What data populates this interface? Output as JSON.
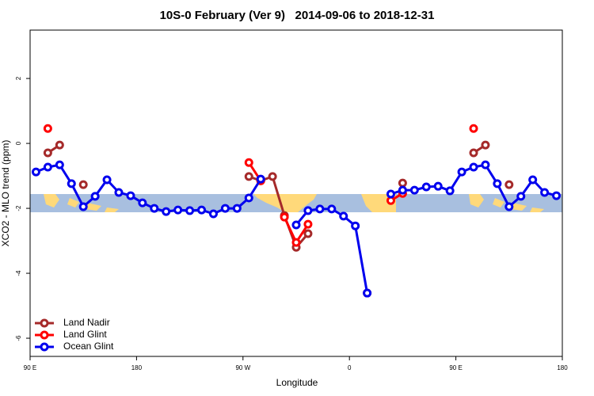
{
  "chart_data": {
    "type": "line",
    "title": "10S-0 February (Ver 9)   2014-09-06 to 2018-12-31",
    "xlabel": "Longitude",
    "ylabel": "XCO2 - MLO trend (ppm)",
    "x": [
      95,
      105,
      115,
      125,
      135,
      145,
      155,
      165,
      175,
      185,
      195,
      205,
      215,
      225,
      235,
      245,
      255,
      265,
      275,
      285,
      295,
      305,
      315,
      325,
      335,
      345,
      355,
      365,
      375,
      385,
      395,
      405,
      415,
      425,
      435,
      445,
      455,
      465,
      475,
      485,
      495,
      505,
      515,
      525,
      535
    ],
    "xlim": [
      90,
      540
    ],
    "xticks": [
      {
        "value": 90,
        "label": "90 E"
      },
      180,
      {
        "value": 270,
        "label": "90 W"
      },
      {
        "value": 360,
        "label": "0"
      },
      {
        "value": 450,
        "label": "90 E"
      },
      {
        "value": 540,
        "label": "180"
      }
    ],
    "ylim": [
      -6.56,
      3.49
    ],
    "yticks": [
      -6,
      -4,
      -2,
      0,
      2
    ],
    "legend": "bottom-left",
    "series": [
      {
        "name": "Land Nadir",
        "color": "#a52a2a",
        "values": [
          null,
          -0.29,
          -0.05,
          null,
          -1.27,
          null,
          null,
          null,
          null,
          null,
          null,
          null,
          null,
          null,
          null,
          null,
          null,
          null,
          -1.02,
          -1.15,
          -1.02,
          -2.22,
          -3.2,
          -2.78,
          null,
          null,
          null,
          null,
          -4.61,
          null,
          null,
          -1.22,
          null,
          null,
          null,
          null,
          null,
          -0.29,
          -0.05,
          null,
          -1.27,
          null,
          null,
          null,
          null
        ]
      },
      {
        "name": "Land Glint",
        "color": "#ff0000",
        "values": [
          null,
          0.46,
          null,
          null,
          null,
          null,
          null,
          null,
          null,
          null,
          null,
          null,
          null,
          null,
          null,
          null,
          null,
          null,
          -0.59,
          -1.15,
          null,
          -2.27,
          -3.05,
          -2.49,
          null,
          null,
          null,
          null,
          null,
          null,
          -1.76,
          -1.54,
          null,
          null,
          null,
          null,
          null,
          0.46,
          null,
          null,
          null,
          null,
          null,
          null,
          null
        ]
      },
      {
        "name": "Ocean Glint",
        "color": "#0000ee",
        "values": [
          -0.88,
          -0.73,
          -0.66,
          -1.24,
          -1.95,
          -1.63,
          -1.12,
          -1.51,
          -1.61,
          -1.83,
          -2.0,
          -2.1,
          -2.05,
          -2.07,
          -2.05,
          -2.17,
          -2.0,
          -2.0,
          -1.68,
          -1.1,
          null,
          null,
          -2.51,
          -2.07,
          -2.02,
          -2.02,
          -2.24,
          -2.54,
          -4.61,
          null,
          -1.56,
          -1.44,
          -1.44,
          -1.34,
          -1.32,
          -1.46,
          -0.88,
          -0.73,
          -0.66,
          -1.24,
          -1.95,
          -1.63,
          -1.12,
          -1.51,
          -1.61
        ]
      }
    ]
  }
}
